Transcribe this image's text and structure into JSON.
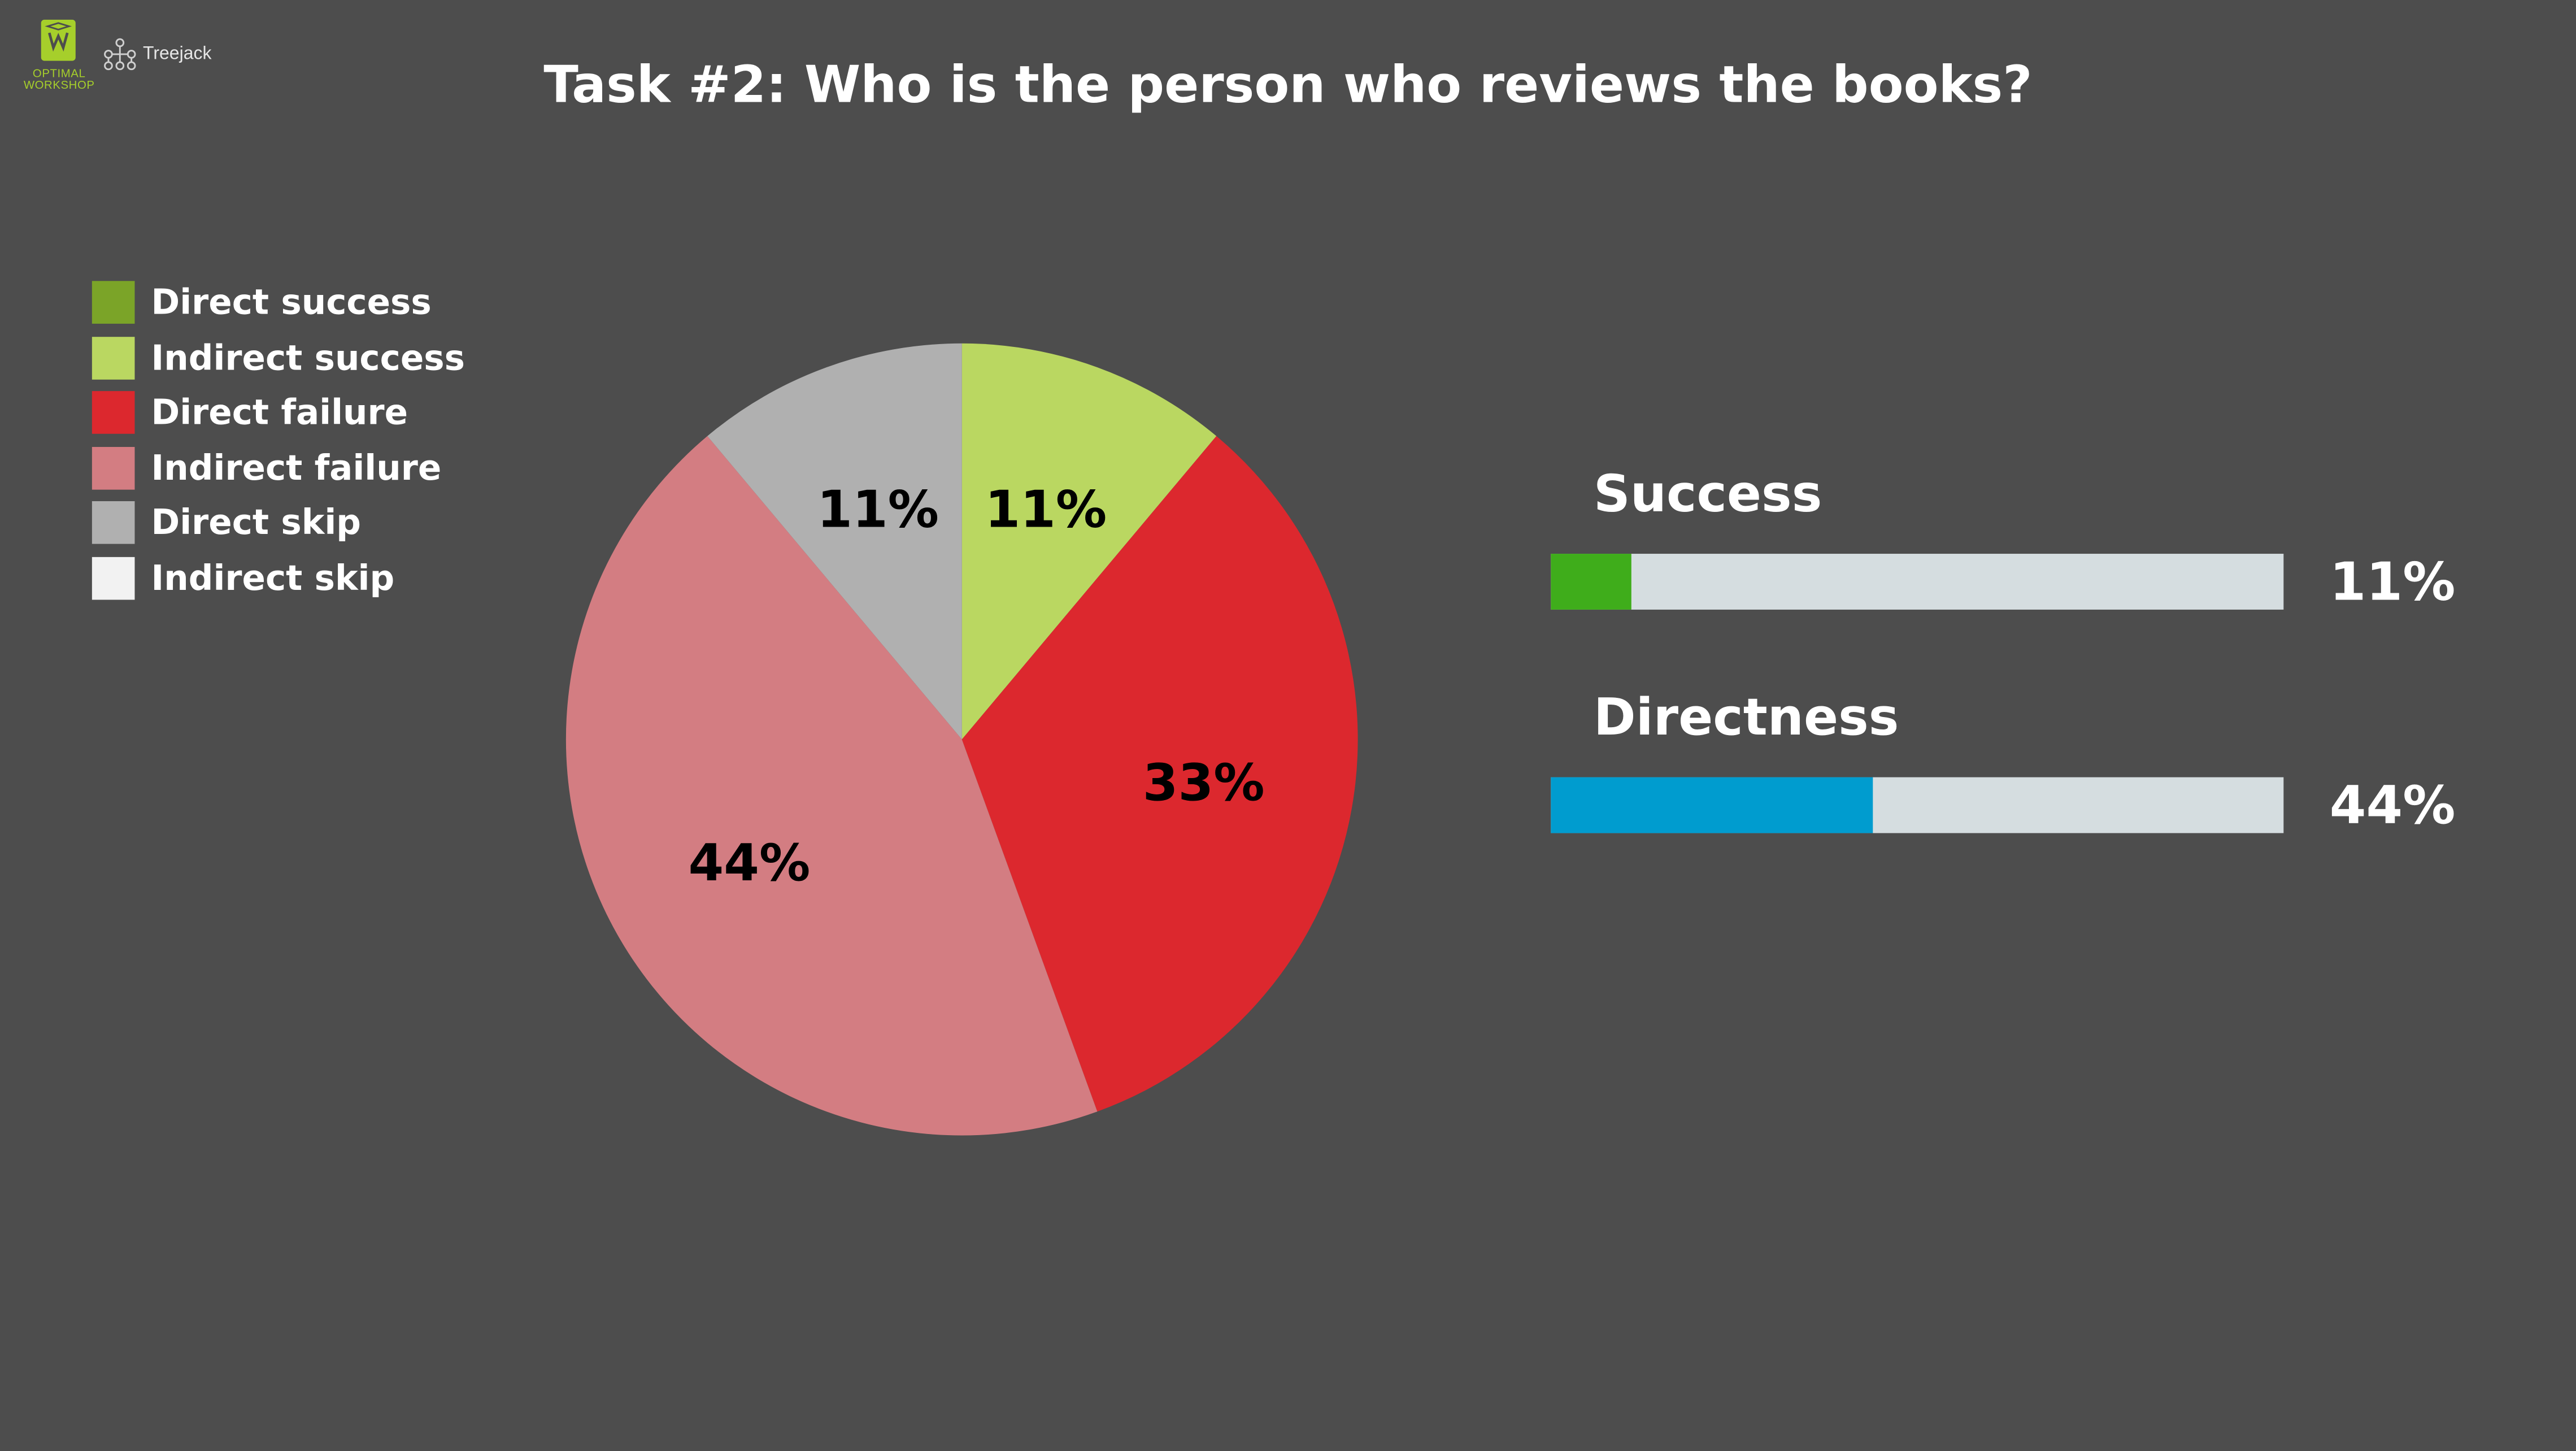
{
  "branding": {
    "company": "OPTIMAL WORKSHOP",
    "company_line1": "OPTIMAL",
    "company_line2": "WORKSHOP",
    "product": "Treejack"
  },
  "chart_data": {
    "type": "pie",
    "title": "Task #2: Who is the person who reviews the books?",
    "legend_placement": "top-left",
    "categories": [
      "Direct success",
      "Indirect success",
      "Direct failure",
      "Indirect failure",
      "Direct skip",
      "Indirect skip"
    ],
    "values": [
      0,
      11,
      33,
      44,
      11,
      0
    ],
    "value_unit": "%",
    "colors": [
      "#7ba428",
      "#bad761",
      "#dc282e",
      "#d37d82",
      "#b0b0b0",
      "#f2f2f2"
    ],
    "data_labels": [
      "",
      "11%",
      "33%",
      "44%",
      "11%",
      ""
    ]
  },
  "metrics": [
    {
      "label": "Success",
      "value": 11,
      "display": "11%",
      "color": "#3fad1b"
    },
    {
      "label": "Directness",
      "value": 44,
      "display": "44%",
      "color": "#009ccf"
    }
  ]
}
